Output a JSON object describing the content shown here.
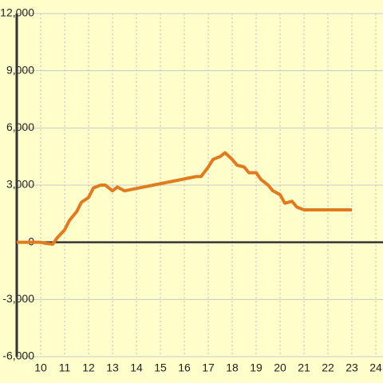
{
  "chart_data": {
    "type": "line",
    "x": [
      9,
      10,
      10.2,
      10.5,
      10.7,
      11,
      11.2,
      11.5,
      11.7,
      12,
      12.2,
      12.5,
      12.7,
      13,
      13.2,
      13.5,
      16.5,
      16.7,
      17,
      17.2,
      17.5,
      17.7,
      18,
      18.2,
      18.5,
      18.7,
      19,
      19.2,
      19.5,
      19.7,
      20,
      20.2,
      20.5,
      20.7,
      21,
      23
    ],
    "series": [
      {
        "color": "#e07b20",
        "values": [
          0,
          0,
          -50,
          -100,
          250,
          650,
          1150,
          1600,
          2100,
          2350,
          2850,
          3000,
          3000,
          2700,
          2900,
          2700,
          3450,
          3450,
          3950,
          4350,
          4500,
          4700,
          4350,
          4050,
          3950,
          3650,
          3650,
          3300,
          3000,
          2700,
          2500,
          2050,
          2150,
          1850,
          1700,
          1700
        ]
      }
    ],
    "xlim": [
      9,
      24.3
    ],
    "xticks": [
      10,
      11,
      12,
      13,
      14,
      15,
      16,
      17,
      18,
      19,
      20,
      21,
      22,
      23,
      24
    ],
    "ylim": [
      -6000,
      12000
    ],
    "yticks": [
      {
        "value": -6000,
        "label": "-6,000"
      },
      {
        "value": -3000,
        "label": "-3,000"
      },
      0,
      {
        "value": 3000,
        "label": "3,000"
      },
      {
        "value": 6000,
        "label": "6,000"
      },
      {
        "value": 9000,
        "label": "9,000"
      },
      {
        "value": 12000,
        "label": "12,000"
      }
    ],
    "grid": true
  }
}
